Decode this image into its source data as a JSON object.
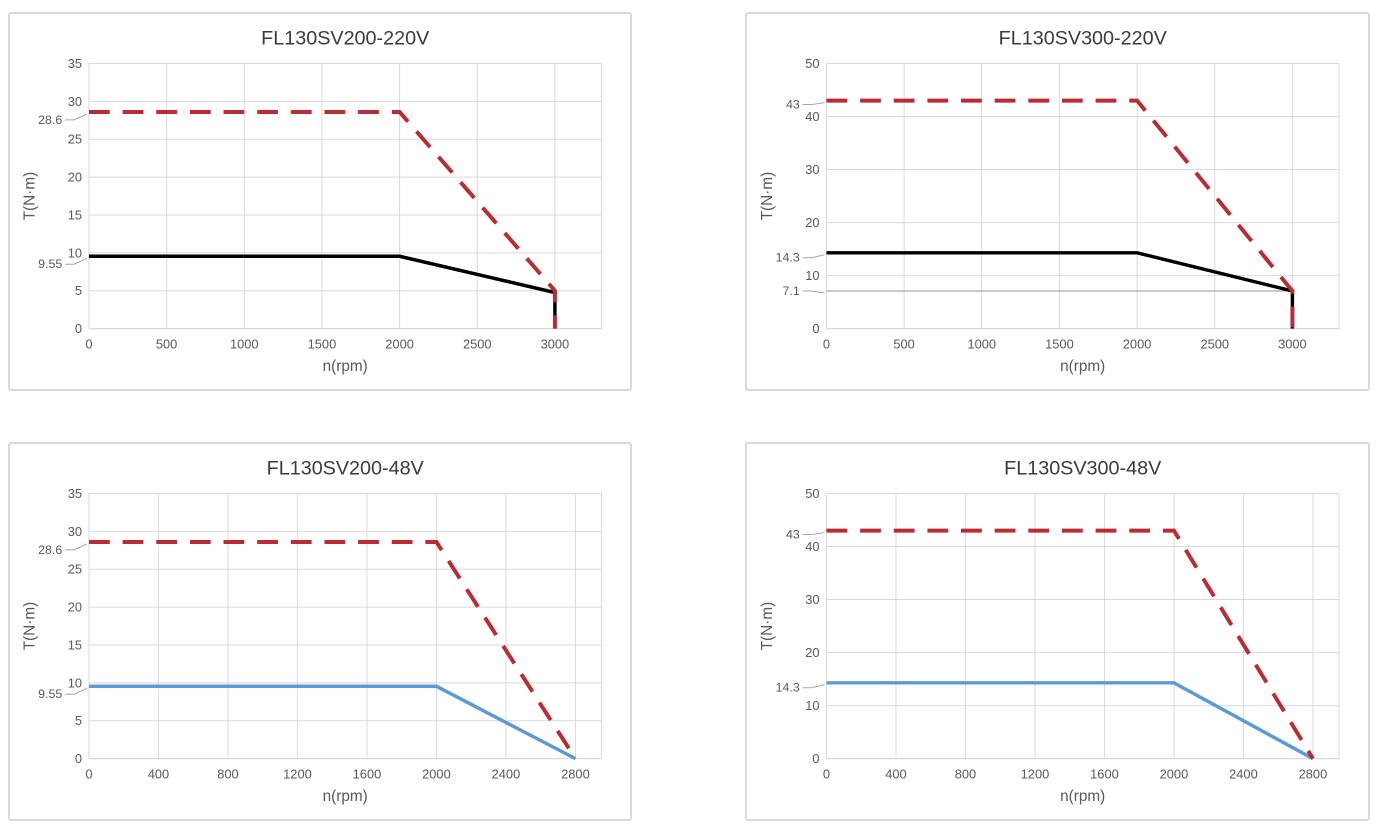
{
  "page": {
    "background": "#ffffff",
    "panel_border_color": "#d9d9d9",
    "grid_color": "#d9d9d9",
    "tick_text_color": "#595959",
    "title_text_color": "#3b3b3b",
    "leader_line_color": "#a6a6a6"
  },
  "chart_data": [
    {
      "type": "line",
      "title": "FL130SV200-220V",
      "xlabel": "n(rpm)",
      "ylabel": "T(N·m)",
      "xlim": [
        0,
        3300
      ],
      "ylim": [
        0,
        35
      ],
      "xticks": [
        0,
        500,
        1000,
        1500,
        2000,
        2500,
        3000
      ],
      "yticks": [
        0,
        5,
        10,
        15,
        20,
        25,
        30,
        35
      ],
      "grid": true,
      "legend": "none",
      "series": [
        {
          "name": "rated-torque-curve",
          "color": "#000000",
          "style": "solid",
          "width": 3.5,
          "points": [
            [
              0,
              9.55
            ],
            [
              2000,
              9.55
            ],
            [
              3000,
              4.77
            ],
            [
              3000,
              0
            ]
          ]
        },
        {
          "name": "peak-torque-curve",
          "color": "#bb2b33",
          "style": "dashed",
          "width": 4,
          "points": [
            [
              0,
              28.6
            ],
            [
              2000,
              28.6
            ],
            [
              3000,
              5
            ],
            [
              3000,
              0
            ]
          ]
        }
      ],
      "callouts": [
        {
          "label": "28.6",
          "y": 28.6,
          "dy": 8
        },
        {
          "label": "9.55",
          "y": 9.55,
          "dy": 8
        }
      ]
    },
    {
      "type": "line",
      "title": "FL130SV300-220V",
      "xlabel": "n(rpm)",
      "ylabel": "T(N·m)",
      "xlim": [
        0,
        3300
      ],
      "ylim": [
        0,
        50
      ],
      "xticks": [
        0,
        500,
        1000,
        1500,
        2000,
        2500,
        3000
      ],
      "yticks": [
        0,
        10,
        20,
        30,
        40,
        50
      ],
      "grid": true,
      "legend": "none",
      "series": [
        {
          "name": "limit-line-7-1",
          "color": "#a6a6a6",
          "style": "solid",
          "width": 1.3,
          "points": [
            [
              0,
              7.1
            ],
            [
              3000,
              7.1
            ]
          ]
        },
        {
          "name": "rated-torque-curve",
          "color": "#000000",
          "style": "solid",
          "width": 3.5,
          "points": [
            [
              0,
              14.3
            ],
            [
              2000,
              14.3
            ],
            [
              3000,
              7.1
            ],
            [
              3000,
              0
            ]
          ]
        },
        {
          "name": "peak-torque-curve",
          "color": "#bb2b33",
          "style": "dashed",
          "width": 4,
          "points": [
            [
              0,
              43
            ],
            [
              2000,
              43
            ],
            [
              3000,
              7.1
            ],
            [
              3000,
              0
            ]
          ]
        }
      ],
      "callouts": [
        {
          "label": "43",
          "y": 43,
          "dy": 4
        },
        {
          "label": "14.3",
          "y": 14.3,
          "dy": 5
        },
        {
          "label": "7.1",
          "y": 7.1,
          "dy": 0
        }
      ]
    },
    {
      "type": "line",
      "title": "FL130SV200-48V",
      "xlabel": "n(rpm)",
      "ylabel": "T(N·m)",
      "xlim": [
        0,
        2950
      ],
      "ylim": [
        0,
        35
      ],
      "xticks": [
        0,
        400,
        800,
        1200,
        1600,
        2000,
        2400,
        2800
      ],
      "yticks": [
        0,
        5,
        10,
        15,
        20,
        25,
        30,
        35
      ],
      "grid": true,
      "legend": "none",
      "series": [
        {
          "name": "rated-torque-curve",
          "color": "#5b9bd5",
          "style": "solid",
          "width": 3.5,
          "points": [
            [
              0,
              9.55
            ],
            [
              2000,
              9.55
            ],
            [
              2800,
              0
            ]
          ]
        },
        {
          "name": "peak-torque-curve",
          "color": "#bb2b33",
          "style": "dashed",
          "width": 4,
          "points": [
            [
              0,
              28.6
            ],
            [
              2000,
              28.6
            ],
            [
              2800,
              0
            ]
          ]
        }
      ],
      "callouts": [
        {
          "label": "28.6",
          "y": 28.6,
          "dy": 8
        },
        {
          "label": "9.55",
          "y": 9.55,
          "dy": 8
        }
      ]
    },
    {
      "type": "line",
      "title": "FL130SV300-48V",
      "xlabel": "n(rpm)",
      "ylabel": "T(N·m)",
      "xlim": [
        0,
        2950
      ],
      "ylim": [
        0,
        50
      ],
      "xticks": [
        0,
        400,
        800,
        1200,
        1600,
        2000,
        2400,
        2800
      ],
      "yticks": [
        0,
        10,
        20,
        30,
        40,
        50
      ],
      "grid": true,
      "legend": "none",
      "series": [
        {
          "name": "rated-torque-curve",
          "color": "#5b9bd5",
          "style": "solid",
          "width": 3.5,
          "points": [
            [
              0,
              14.3
            ],
            [
              2000,
              14.3
            ],
            [
              2800,
              0
            ]
          ]
        },
        {
          "name": "peak-torque-curve",
          "color": "#bb2b33",
          "style": "dashed",
          "width": 4,
          "points": [
            [
              0,
              43
            ],
            [
              2000,
              43
            ],
            [
              2800,
              0
            ]
          ]
        }
      ],
      "callouts": [
        {
          "label": "43",
          "y": 43,
          "dy": 4
        },
        {
          "label": "14.3",
          "y": 14.3,
          "dy": 5
        }
      ]
    }
  ]
}
